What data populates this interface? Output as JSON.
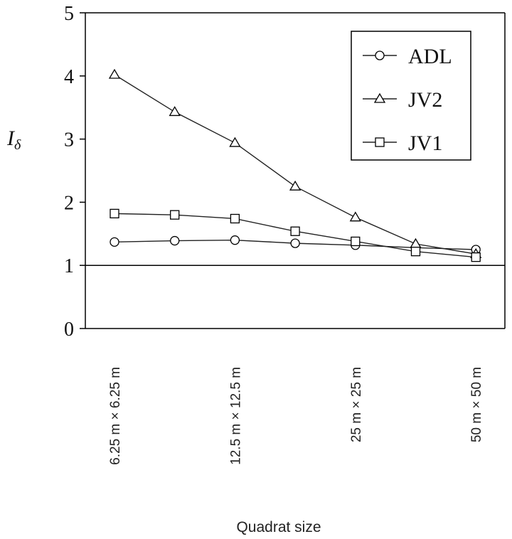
{
  "chart_data": {
    "type": "line",
    "xlabel": "Quadrat size",
    "ylabel": "I",
    "ylabel_subscript": "δ",
    "ylim": [
      0,
      5
    ],
    "yticks": [
      "0",
      "1",
      "2",
      "3",
      "4",
      "5"
    ],
    "reference_line_y": 1,
    "x": [
      1,
      2,
      3,
      4,
      5,
      6,
      7
    ],
    "category_labels": [
      {
        "x": 1,
        "label": "6.25 m × 6.25 m"
      },
      {
        "x": 3,
        "label": "12.5 m × 12.5 m"
      },
      {
        "x": 5,
        "label": "25 m × 25 m"
      },
      {
        "x": 7,
        "label": "50 m × 50 m"
      }
    ],
    "series": [
      {
        "name": "ADL",
        "marker": "circle",
        "values": [
          1.37,
          1.39,
          1.4,
          1.35,
          1.32,
          1.28,
          1.25
        ]
      },
      {
        "name": "JV2",
        "marker": "triangle",
        "values": [
          4.02,
          3.43,
          2.94,
          2.25,
          1.76,
          1.34,
          1.18
        ]
      },
      {
        "name": "JV1",
        "marker": "square",
        "values": [
          1.82,
          1.8,
          1.74,
          1.54,
          1.38,
          1.22,
          1.13
        ]
      }
    ],
    "legend_position": "top-right",
    "grid": false
  }
}
